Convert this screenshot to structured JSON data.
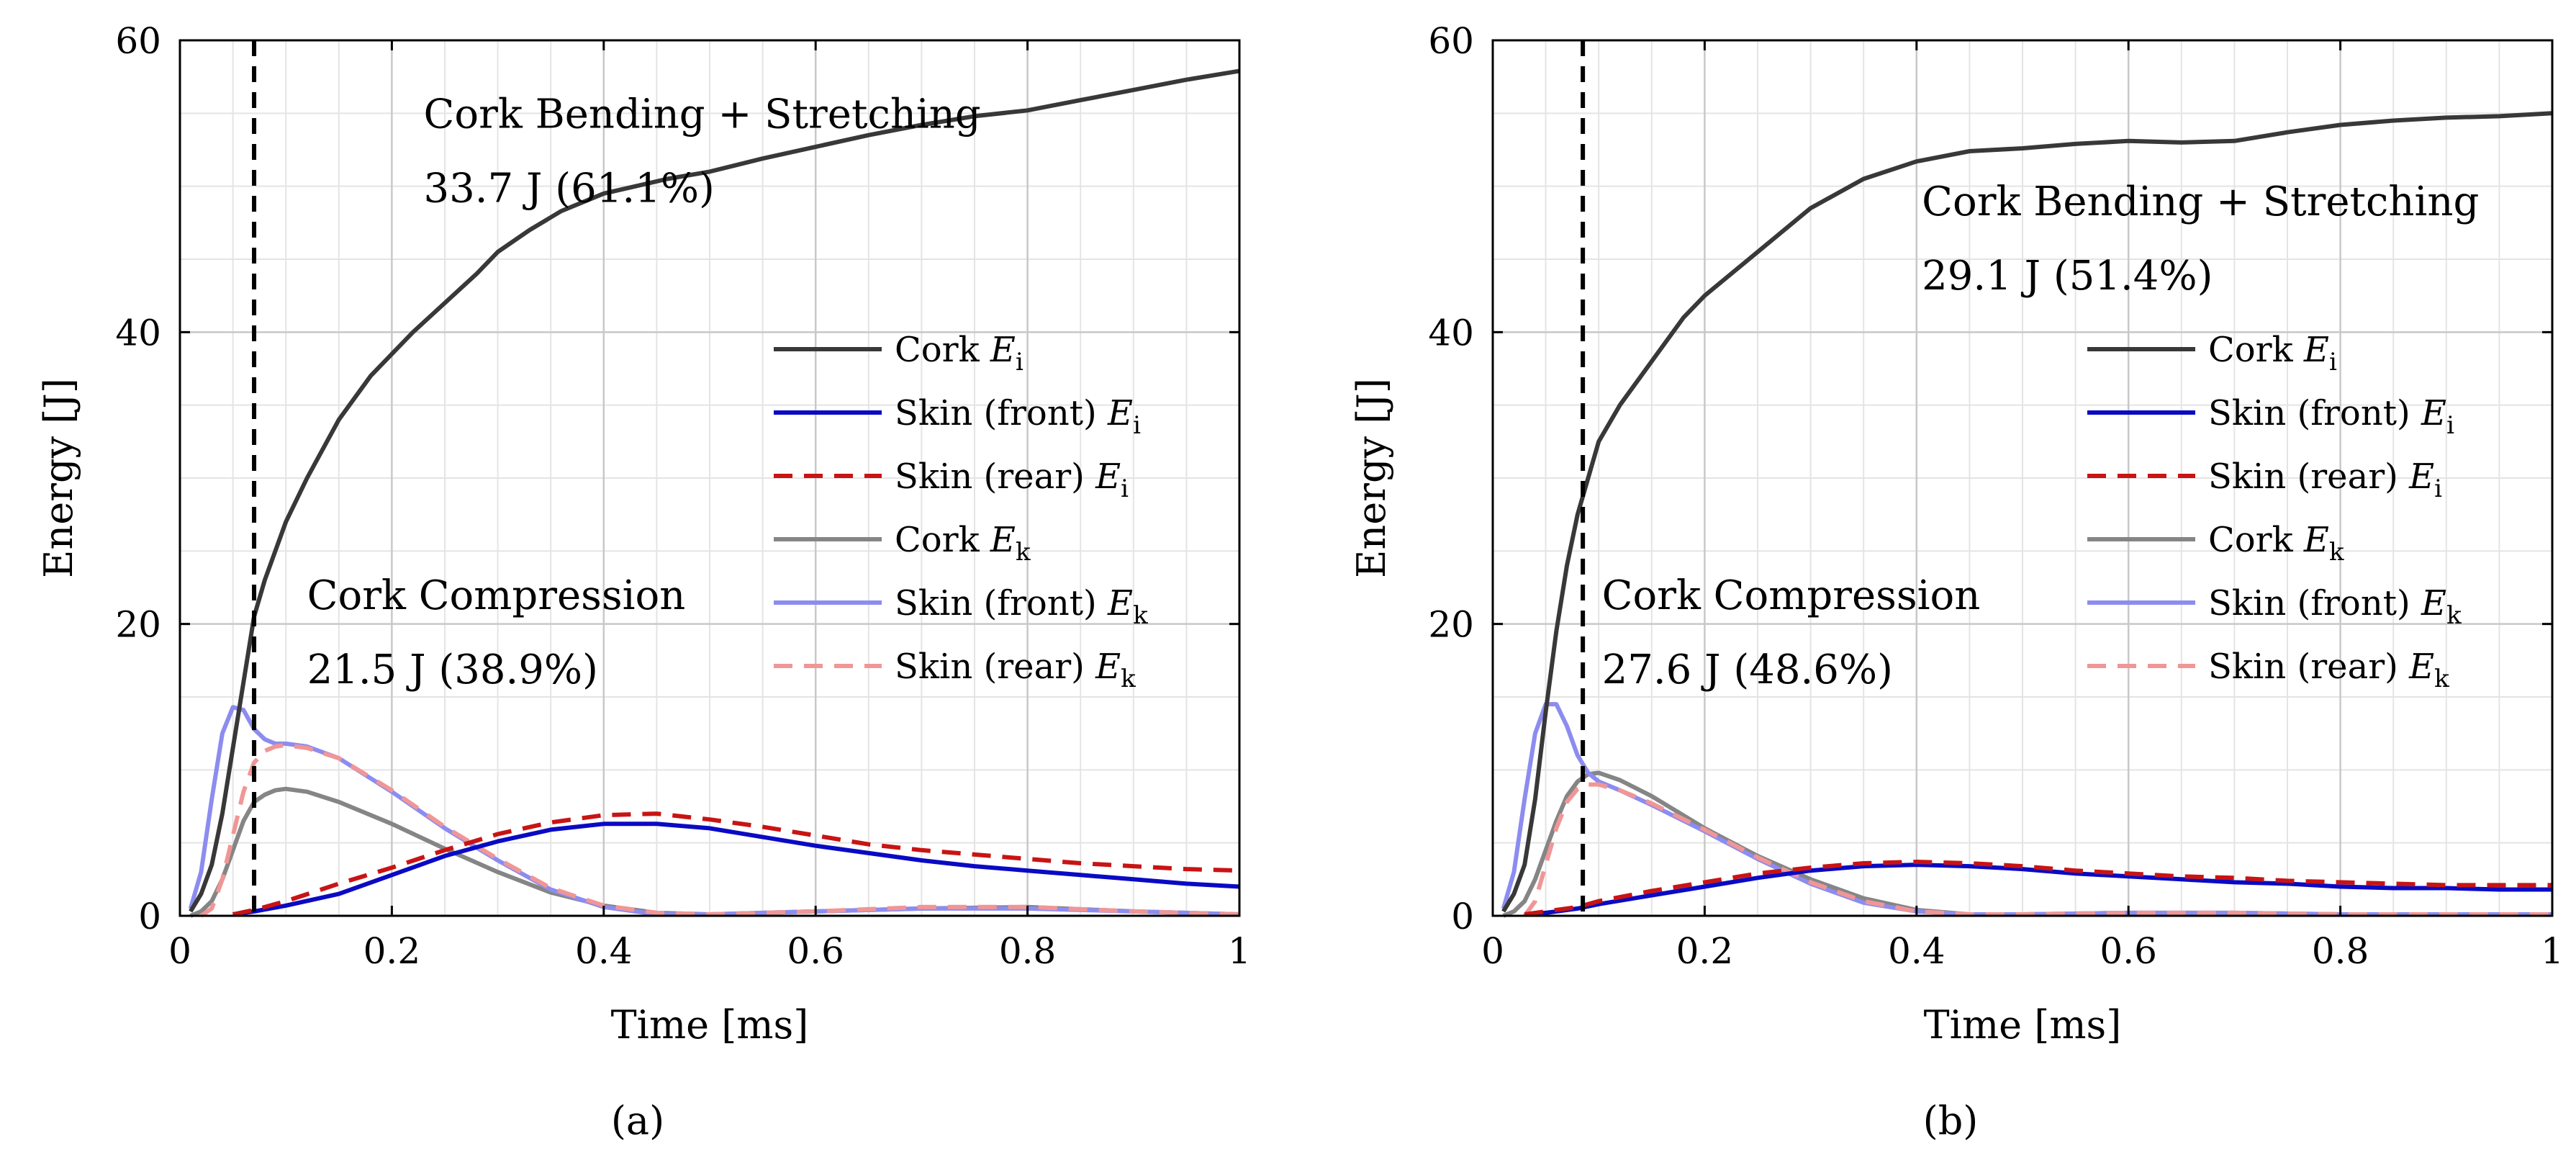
{
  "colors": {
    "cork_ei": "#383838",
    "skin_front_ei": "#0a0ac4",
    "skin_rear_ei": "#c81414",
    "cork_ek": "#858585",
    "skin_front_ek": "#8c8cf0",
    "skin_rear_ek": "#f09696",
    "grid": "#c8c8c8",
    "axis": "#000000"
  },
  "legend_labels": [
    {
      "prefix": "Cork",
      "symbol": "E",
      "sub": "i"
    },
    {
      "prefix": "Skin (front)",
      "symbol": "E",
      "sub": "i"
    },
    {
      "prefix": "Skin (rear)",
      "symbol": "E",
      "sub": "i"
    },
    {
      "prefix": "Cork",
      "symbol": "E",
      "sub": "k"
    },
    {
      "prefix": "Skin (front)",
      "symbol": "E",
      "sub": "k"
    },
    {
      "prefix": "Skin (rear)",
      "symbol": "E",
      "sub": "k"
    }
  ],
  "chart_data": [
    {
      "type": "line",
      "caption": "(a)",
      "xlabel": "Time [ms]",
      "ylabel": "Energy [J]",
      "xlim": [
        0,
        1
      ],
      "ylim": [
        0,
        60
      ],
      "xticks": [
        0,
        0.2,
        0.4,
        0.6,
        0.8,
        1
      ],
      "xtick_labels": [
        "0",
        "0.2",
        "0.4",
        "0.6",
        "0.8",
        "1"
      ],
      "yticks": [
        0,
        20,
        40,
        60
      ],
      "ytick_labels": [
        "0",
        "20",
        "40",
        "60"
      ],
      "grid": true,
      "vline_x": 0.07,
      "annotations": [
        {
          "line1": "Cork Bending + Stretching",
          "line2": "33.7 J (61.1%)",
          "x": 0.23,
          "y": 55
        },
        {
          "line1": "Cork Compression",
          "line2": "21.5 J (38.9%)",
          "x": 0.12,
          "y": 22
        }
      ],
      "series": [
        {
          "name": "Cork Ei",
          "style": "solid",
          "x": [
            0.01,
            0.02,
            0.03,
            0.04,
            0.05,
            0.06,
            0.07,
            0.08,
            0.1,
            0.12,
            0.15,
            0.18,
            0.2,
            0.22,
            0.25,
            0.28,
            0.3,
            0.33,
            0.36,
            0.4,
            0.43,
            0.46,
            0.5,
            0.55,
            0.6,
            0.65,
            0.7,
            0.75,
            0.8,
            0.85,
            0.9,
            0.95,
            1.0
          ],
          "y": [
            0.3,
            1.5,
            3.5,
            7,
            11.5,
            16,
            20.5,
            23,
            27,
            30,
            34,
            37,
            38.5,
            40,
            42,
            44,
            45.5,
            47,
            48.3,
            49.5,
            50,
            50.5,
            51,
            51.9,
            52.7,
            53.5,
            54.2,
            54.8,
            55.2,
            55.9,
            56.6,
            57.3,
            57.9
          ]
        },
        {
          "name": "Skin (front) Ei",
          "style": "solid",
          "x": [
            0.05,
            0.07,
            0.1,
            0.15,
            0.2,
            0.25,
            0.3,
            0.35,
            0.4,
            0.45,
            0.5,
            0.55,
            0.6,
            0.65,
            0.7,
            0.75,
            0.8,
            0.85,
            0.9,
            0.95,
            1.0
          ],
          "y": [
            0.1,
            0.3,
            0.7,
            1.5,
            2.8,
            4.1,
            5.1,
            5.9,
            6.3,
            6.3,
            6,
            5.4,
            4.8,
            4.3,
            3.8,
            3.4,
            3.1,
            2.8,
            2.5,
            2.2,
            2.0
          ]
        },
        {
          "name": "Skin (rear) Ei",
          "style": "dashed",
          "x": [
            0.05,
            0.07,
            0.1,
            0.15,
            0.2,
            0.25,
            0.3,
            0.35,
            0.4,
            0.45,
            0.5,
            0.55,
            0.6,
            0.65,
            0.7,
            0.75,
            0.8,
            0.85,
            0.9,
            0.95,
            1.0
          ],
          "y": [
            0.1,
            0.4,
            1.0,
            2.2,
            3.3,
            4.5,
            5.6,
            6.4,
            6.9,
            7.0,
            6.6,
            6.1,
            5.5,
            4.9,
            4.5,
            4.2,
            3.9,
            3.6,
            3.4,
            3.2,
            3.1
          ]
        },
        {
          "name": "Cork Ek",
          "style": "solid",
          "x": [
            0.01,
            0.02,
            0.03,
            0.04,
            0.05,
            0.06,
            0.07,
            0.08,
            0.09,
            0.1,
            0.12,
            0.15,
            0.2,
            0.25,
            0.3,
            0.35,
            0.4,
            0.45,
            0.5,
            0.55,
            0.6,
            0.7,
            0.8,
            0.9,
            1.0
          ],
          "y": [
            0,
            0.3,
            1.0,
            2.5,
            4.5,
            6.5,
            7.8,
            8.3,
            8.6,
            8.7,
            8.5,
            7.8,
            6.3,
            4.6,
            3.0,
            1.6,
            0.7,
            0.2,
            0.1,
            0.2,
            0.3,
            0.5,
            0.6,
            0.3,
            0.1
          ]
        },
        {
          "name": "Skin (front) Ek",
          "style": "solid",
          "x": [
            0.01,
            0.02,
            0.03,
            0.04,
            0.05,
            0.06,
            0.07,
            0.08,
            0.09,
            0.1,
            0.12,
            0.15,
            0.2,
            0.25,
            0.3,
            0.35,
            0.4,
            0.45,
            0.5,
            0.55,
            0.6,
            0.7,
            0.8,
            0.9,
            1.0
          ],
          "y": [
            0.5,
            3,
            8,
            12.5,
            14.3,
            14.1,
            12.8,
            12.1,
            11.8,
            11.8,
            11.6,
            10.8,
            8.5,
            6.0,
            3.8,
            1.8,
            0.6,
            0.1,
            0.1,
            0.2,
            0.3,
            0.5,
            0.5,
            0.3,
            0.1
          ]
        },
        {
          "name": "Skin (rear) Ek",
          "style": "dashed",
          "x": [
            0.02,
            0.03,
            0.04,
            0.05,
            0.06,
            0.07,
            0.08,
            0.09,
            0.1,
            0.12,
            0.15,
            0.2,
            0.25,
            0.3,
            0.35,
            0.4,
            0.45,
            0.5,
            0.55,
            0.6,
            0.7,
            0.8,
            0.9,
            1.0
          ],
          "y": [
            0,
            0.5,
            2.5,
            5.5,
            8.5,
            10.5,
            11.3,
            11.6,
            11.7,
            11.5,
            10.8,
            8.6,
            6.1,
            3.9,
            1.9,
            0.7,
            0.2,
            0.1,
            0.2,
            0.3,
            0.6,
            0.6,
            0.3,
            0.1
          ]
        }
      ]
    },
    {
      "type": "line",
      "caption": "(b)",
      "xlabel": "Time [ms]",
      "ylabel": "Energy [J]",
      "xlim": [
        0,
        1
      ],
      "ylim": [
        0,
        60
      ],
      "xticks": [
        0,
        0.2,
        0.4,
        0.6,
        0.8,
        1
      ],
      "xtick_labels": [
        "0",
        "0.2",
        "0.4",
        "0.6",
        "0.8",
        "1"
      ],
      "yticks": [
        0,
        20,
        40,
        60
      ],
      "ytick_labels": [
        "0",
        "20",
        "40",
        "60"
      ],
      "grid": true,
      "vline_x": 0.085,
      "annotations": [
        {
          "line1": "Cork Bending + Stretching",
          "line2": "29.1 J (51.4%)",
          "x": 0.405,
          "y": 49
        },
        {
          "line1": "Cork Compression",
          "line2": "27.6 J (48.6%)",
          "x": 0.103,
          "y": 22
        }
      ],
      "series": [
        {
          "name": "Cork Ei",
          "style": "solid",
          "x": [
            0.01,
            0.02,
            0.03,
            0.04,
            0.05,
            0.06,
            0.07,
            0.08,
            0.09,
            0.1,
            0.12,
            0.15,
            0.18,
            0.2,
            0.25,
            0.3,
            0.35,
            0.4,
            0.45,
            0.5,
            0.55,
            0.6,
            0.65,
            0.7,
            0.75,
            0.8,
            0.85,
            0.9,
            0.95,
            1.0
          ],
          "y": [
            0.3,
            1.5,
            3.5,
            8,
            14,
            19.5,
            24,
            27.5,
            30,
            32.5,
            35,
            38,
            41,
            42.5,
            45.5,
            48.5,
            50.5,
            51.7,
            52.4,
            52.6,
            52.9,
            53.1,
            53.0,
            53.1,
            53.7,
            54.2,
            54.5,
            54.7,
            54.8,
            55.0
          ]
        },
        {
          "name": "Skin (front) Ei",
          "style": "solid",
          "x": [
            0.03,
            0.05,
            0.08,
            0.1,
            0.15,
            0.2,
            0.25,
            0.3,
            0.35,
            0.4,
            0.45,
            0.5,
            0.55,
            0.6,
            0.65,
            0.7,
            0.75,
            0.8,
            0.85,
            0.9,
            0.95,
            1.0
          ],
          "y": [
            0.1,
            0.2,
            0.5,
            0.8,
            1.4,
            2.0,
            2.6,
            3.1,
            3.4,
            3.5,
            3.4,
            3.2,
            2.9,
            2.7,
            2.5,
            2.3,
            2.2,
            2.0,
            1.9,
            1.9,
            1.8,
            1.8
          ]
        },
        {
          "name": "Skin (rear) Ei",
          "style": "dashed",
          "x": [
            0.03,
            0.05,
            0.08,
            0.1,
            0.15,
            0.2,
            0.25,
            0.3,
            0.35,
            0.4,
            0.45,
            0.5,
            0.55,
            0.6,
            0.65,
            0.7,
            0.75,
            0.8,
            0.85,
            0.9,
            0.95,
            1.0
          ],
          "y": [
            0.1,
            0.3,
            0.6,
            1.0,
            1.7,
            2.3,
            2.9,
            3.3,
            3.6,
            3.7,
            3.6,
            3.4,
            3.1,
            2.9,
            2.7,
            2.6,
            2.4,
            2.3,
            2.2,
            2.1,
            2.1,
            2.1
          ]
        },
        {
          "name": "Cork Ek",
          "style": "solid",
          "x": [
            0.01,
            0.02,
            0.03,
            0.04,
            0.05,
            0.06,
            0.07,
            0.08,
            0.09,
            0.1,
            0.12,
            0.15,
            0.2,
            0.25,
            0.3,
            0.35,
            0.4,
            0.45,
            0.5,
            0.6,
            0.7,
            0.8,
            0.9,
            1.0
          ],
          "y": [
            0,
            0.3,
            1.0,
            2.5,
            4.5,
            6.5,
            8.2,
            9.2,
            9.7,
            9.8,
            9.3,
            8.2,
            6.0,
            4.1,
            2.5,
            1.2,
            0.4,
            0.1,
            0.1,
            0.2,
            0.2,
            0.1,
            0.1,
            0.1
          ]
        },
        {
          "name": "Skin (front) Ek",
          "style": "solid",
          "x": [
            0.01,
            0.02,
            0.03,
            0.04,
            0.05,
            0.06,
            0.07,
            0.08,
            0.09,
            0.1,
            0.12,
            0.15,
            0.2,
            0.25,
            0.3,
            0.35,
            0.4,
            0.45,
            0.5,
            0.6,
            0.7,
            0.8,
            0.9,
            1.0
          ],
          "y": [
            0.5,
            3,
            8,
            12.5,
            14.5,
            14.5,
            13,
            11,
            9.8,
            9.2,
            8.6,
            7.6,
            5.8,
            3.9,
            2.2,
            0.9,
            0.3,
            0.1,
            0.1,
            0.2,
            0.2,
            0.1,
            0.1,
            0.1
          ]
        },
        {
          "name": "Skin (rear) Ek",
          "style": "dashed",
          "x": [
            0.03,
            0.04,
            0.05,
            0.06,
            0.07,
            0.08,
            0.09,
            0.1,
            0.12,
            0.15,
            0.2,
            0.25,
            0.3,
            0.35,
            0.4,
            0.45,
            0.5,
            0.6,
            0.7,
            0.8,
            0.9,
            1.0
          ],
          "y": [
            0,
            1.0,
            3.5,
            6,
            7.8,
            8.7,
            9.0,
            9.0,
            8.6,
            7.7,
            5.9,
            4.0,
            2.3,
            1.0,
            0.3,
            0.1,
            0.1,
            0.2,
            0.2,
            0.1,
            0.1,
            0.1
          ]
        }
      ]
    }
  ]
}
